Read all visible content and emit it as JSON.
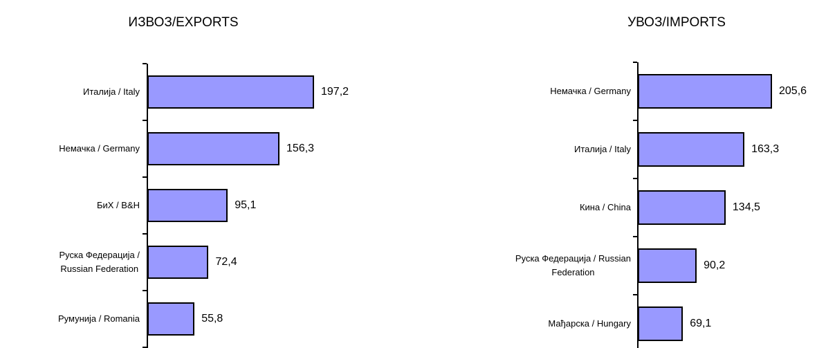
{
  "chart_data": [
    {
      "type": "bar",
      "orientation": "horizontal",
      "title": "ИЗВОЗ/EXPORTS",
      "categories": [
        "Италија / Italy",
        "Немачка / Germany",
        "БиХ / B&H",
        "Руска Федерација /\nRussian Federation",
        "Румунија / Romania"
      ],
      "values": [
        197.2,
        156.3,
        95.1,
        72.4,
        55.8
      ],
      "value_labels": [
        "197,2",
        "156,3",
        "95,1",
        "72,4",
        "55,8"
      ],
      "color": "#9999ff"
    },
    {
      "type": "bar",
      "orientation": "horizontal",
      "title": "УВОЗ/IMPORTS",
      "categories": [
        "Немачка / Germany",
        "Италија / Italy",
        "Кина / China",
        "Руска Федерација / Russian\nFederation",
        "Мађарска / Hungary"
      ],
      "values": [
        205.6,
        163.3,
        134.5,
        90.2,
        69.1
      ],
      "value_labels": [
        "205,6",
        "163,3",
        "134,5",
        "90,2",
        "69,1"
      ],
      "color": "#9999ff"
    }
  ]
}
